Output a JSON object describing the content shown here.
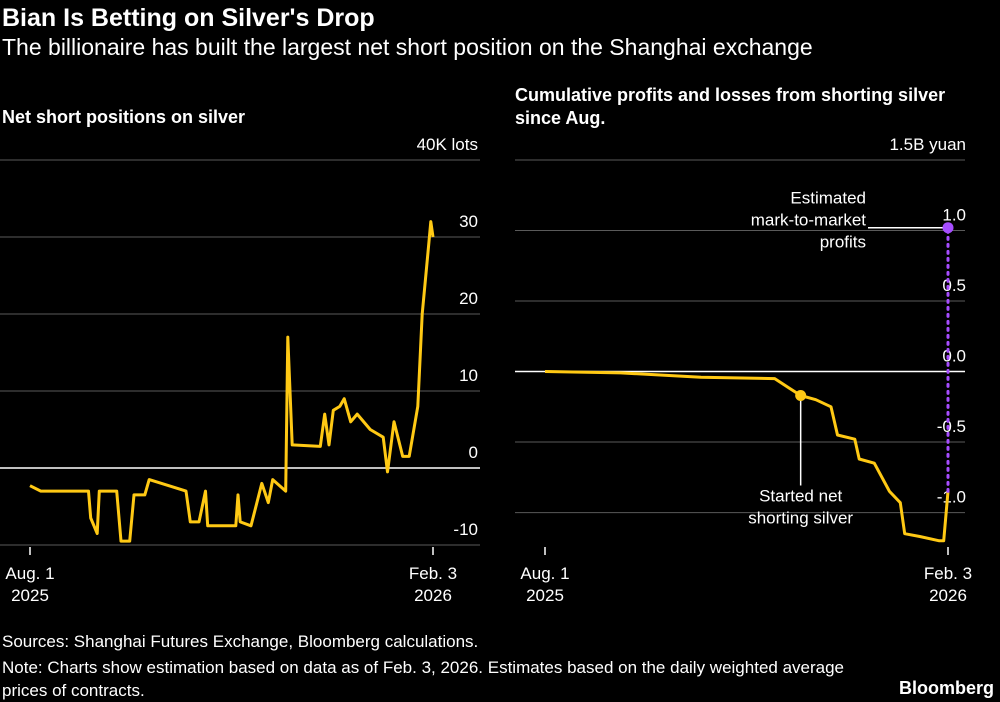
{
  "title": "Bian Is Betting on Silver's Drop",
  "subtitle": "The billionaire has built the largest net short position on the Shanghai exchange",
  "source": "Sources: Shanghai Futures Exchange, Bloomberg calculations.",
  "note": "Note: Charts show estimation based on data as of Feb. 3, 2026. Estimates based on the daily weighted average prices of contracts.",
  "logo": "Bloomberg",
  "chart_data": [
    {
      "type": "line",
      "title": "Net short positions on silver",
      "color": "#ffc914",
      "grid": true,
      "x": [
        "2025-08-01",
        "2025-08-06",
        "2025-08-19",
        "2025-08-28",
        "2025-08-29",
        "2025-09-01",
        "2025-09-02",
        "2025-09-10",
        "2025-09-12",
        "2025-09-16",
        "2025-09-18",
        "2025-09-23",
        "2025-09-25",
        "2025-10-12",
        "2025-10-14",
        "2025-10-18",
        "2025-10-21",
        "2025-10-22",
        "2025-11-04",
        "2025-11-05",
        "2025-11-06",
        "2025-11-11",
        "2025-11-16",
        "2025-11-19",
        "2025-11-21",
        "2025-11-27",
        "2025-11-28",
        "2025-11-30",
        "2025-12-13",
        "2025-12-15",
        "2025-12-17",
        "2025-12-19",
        "2025-12-22",
        "2025-12-24",
        "2025-12-27",
        "2025-12-30",
        "2026-01-05",
        "2026-01-11",
        "2026-01-13",
        "2026-01-16",
        "2026-01-20",
        "2026-01-23",
        "2026-01-27",
        "2026-01-29",
        "2026-02-01",
        "2026-02-02",
        "2026-02-03"
      ],
      "values": [
        -2.3,
        -3,
        -3,
        -3,
        -6.5,
        -8.5,
        -3,
        -3,
        -9.5,
        -9.5,
        -3.5,
        -3.5,
        -1.5,
        -3,
        -7,
        -7,
        -3,
        -7.5,
        -7.5,
        -3.5,
        -7,
        -7.5,
        -2,
        -4.5,
        -1.5,
        -3,
        17,
        3,
        2.8,
        7,
        3,
        7.5,
        8,
        9,
        6,
        7,
        5,
        4,
        -0.5,
        6,
        1.5,
        1.5,
        8,
        20,
        29,
        32,
        30
      ],
      "ylim": [
        -10,
        40
      ],
      "yticks": [
        -10,
        0,
        10,
        20,
        30,
        {
          "value": 40,
          "label": "40K lots"
        }
      ],
      "xticks": [
        {
          "value": "2025-08-01",
          "label": "Aug. 1\n2025"
        },
        {
          "value": "2026-02-03",
          "label": "Feb. 3\n2026"
        }
      ]
    },
    {
      "type": "line",
      "title": "Cumulative profits and losses from shorting silver since Aug.",
      "color": "#ffc914",
      "grid": true,
      "x": [
        "2025-08-01",
        "2025-09-05",
        "2025-10-12",
        "2025-11-15",
        "2025-11-22",
        "2025-11-27",
        "2025-12-04",
        "2025-12-11",
        "2025-12-14",
        "2025-12-22",
        "2025-12-24",
        "2025-12-31",
        "2026-01-07",
        "2026-01-12",
        "2026-01-14",
        "2026-01-21",
        "2026-01-30",
        "2026-02-01",
        "2026-02-03"
      ],
      "values": [
        0,
        -0.01,
        -0.04,
        -0.05,
        -0.12,
        -0.17,
        -0.2,
        -0.25,
        -0.45,
        -0.48,
        -0.62,
        -0.65,
        -0.85,
        -0.93,
        -1.15,
        -1.17,
        -1.2,
        -1.2,
        -0.85
      ],
      "ylim": [
        -1.23,
        1.5
      ],
      "yticks": [
        {
          "value": -1,
          "label": "-1.0"
        },
        {
          "value": -0.5,
          "label": "-0.5"
        },
        {
          "value": 0,
          "label": "0.0"
        },
        {
          "value": 0.5,
          "label": "0.5"
        },
        {
          "value": 1,
          "label": "1.0"
        },
        {
          "value": 1.5,
          "label": "1.5B yuan"
        }
      ],
      "xticks": [
        {
          "value": "2025-08-01",
          "label": "Aug. 1\n2025"
        },
        {
          "value": "2026-02-03",
          "label": "Feb. 3\n2026"
        }
      ],
      "annotations": [
        {
          "text": "Started net\nshorting silver",
          "x": "2025-11-27",
          "value": -0.17,
          "color": "#ffc914"
        },
        {
          "text": "Estimated\nmark-to-market\nprofits",
          "x": "2026-02-03",
          "value": 1.02,
          "color": "#a64dff"
        }
      ]
    }
  ]
}
